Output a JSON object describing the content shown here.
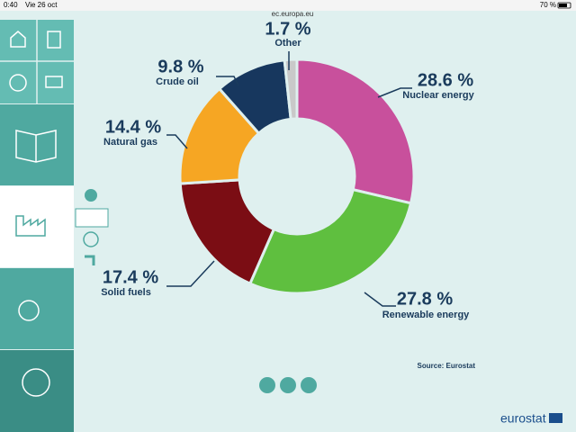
{
  "status_bar": {
    "time": "0:40",
    "date": "Vie 26 oct",
    "url": "ec.europa.eu",
    "battery": "70 %"
  },
  "chart_data": {
    "type": "pie",
    "donut": true,
    "categories": [
      "Nuclear energy",
      "Renewable energy",
      "Solid fuels",
      "Natural gas",
      "Crude oil",
      "Other"
    ],
    "values": [
      28.6,
      27.8,
      17.4,
      14.4,
      9.8,
      1.7
    ],
    "value_labels": [
      "28.6 %",
      "27.8 %",
      "17.4 %",
      "14.4 %",
      "9.8 %",
      "1.7 %"
    ],
    "colors": [
      "#c8509c",
      "#5fbf3f",
      "#7b0d14",
      "#f6a623",
      "#17375e",
      "#c9c9c9"
    ]
  },
  "source": "Source: Eurostat",
  "logo": "eurostat"
}
